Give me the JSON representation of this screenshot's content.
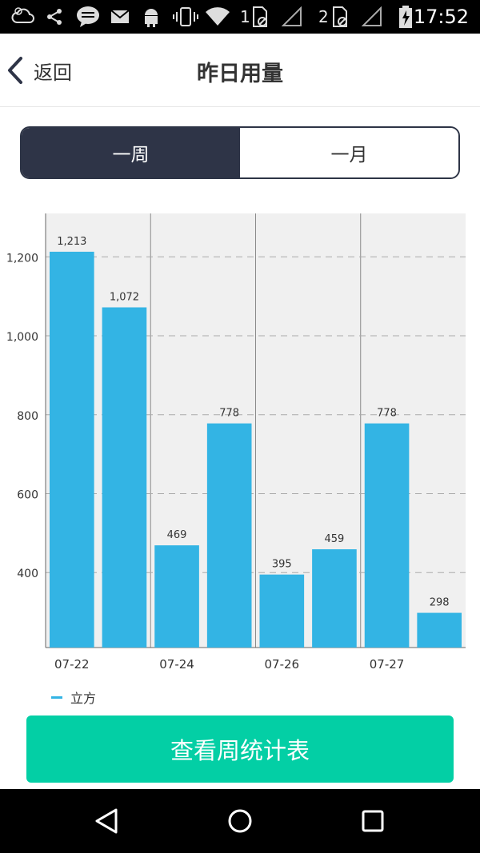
{
  "status_bar": {
    "time": "17:52",
    "sim1": "1",
    "sim2": "2",
    "icons": [
      "weather-icon",
      "share-icon",
      "message-icon",
      "mail-icon",
      "android-icon",
      "vibrate-icon",
      "wifi-icon",
      "sim1-icon",
      "signal-icon",
      "sim2-icon",
      "signal-icon",
      "battery-charging-icon"
    ]
  },
  "header": {
    "back_label": "返回",
    "title": "昨日用量"
  },
  "segment": {
    "week_label": "一周",
    "month_label": "一月",
    "selected": "week"
  },
  "chart_data": {
    "type": "bar",
    "categories": [
      "",
      "",
      "",
      "",
      "",
      "",
      "",
      ""
    ],
    "x_tick_labels": [
      "07-22",
      "07-24",
      "07-26",
      "07-27"
    ],
    "series": [
      {
        "name": "立方",
        "values": [
          1213,
          1072,
          469,
          778,
          395,
          459,
          778,
          298
        ],
        "data_labels": [
          "1,213",
          "1,072",
          "469",
          "778",
          "395",
          "459",
          "778",
          "298"
        ],
        "color": "#33b4e4"
      }
    ],
    "y_tick_labels": [
      "400",
      "600",
      "800",
      "1,000",
      "1,200"
    ],
    "y_ticks": [
      400,
      600,
      800,
      1000,
      1200
    ],
    "ylim": [
      210,
      1310
    ],
    "grid": "dashed-horizontal",
    "legend": "bottom-left",
    "plot_background": "#f0f0f0"
  },
  "legend": {
    "label": "立方"
  },
  "action_button": {
    "label": "查看周统计表"
  },
  "colors": {
    "accent_dark": "#2e3447",
    "bar": "#33b4e4",
    "button": "#03cfa5"
  }
}
